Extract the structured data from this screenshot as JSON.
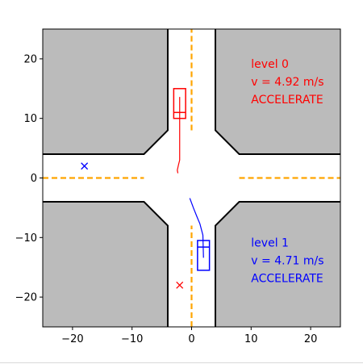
{
  "chart_data": {
    "type": "scatter",
    "xlim": [
      -25,
      25
    ],
    "ylim": [
      -25,
      25
    ],
    "grid": false,
    "x_ticks": [
      -20,
      -10,
      0,
      10,
      20
    ],
    "y_ticks": [
      -20,
      -10,
      0,
      10,
      20
    ],
    "x_tick_labels": [
      "−20",
      "−10",
      "0",
      "10",
      "20"
    ],
    "y_tick_labels": [
      "−20",
      "−10",
      "0",
      "10",
      "20"
    ],
    "road": {
      "lane_half_width": 4,
      "corner_chamfer": 4,
      "block_color": "#bbbbbb",
      "edge_color": "#000000",
      "center_line_color": "#ffa500",
      "center_line_segments": [
        {
          "x": [
            0,
            0
          ],
          "y": [
            8,
            25
          ]
        },
        {
          "x": [
            0,
            0
          ],
          "y": [
            -25,
            -8
          ]
        },
        {
          "x": [
            -25,
            -8
          ],
          "y": [
            0,
            0
          ]
        },
        {
          "x": [
            8,
            25
          ],
          "y": [
            0,
            0
          ]
        }
      ]
    },
    "vehicles": [
      {
        "name": "level 0",
        "color": "#ff0000",
        "box_center": [
          -2,
          12.5
        ],
        "box_size": [
          2,
          5
        ],
        "box_divider_y": 11,
        "trajectory": [
          [
            -2,
            13.6
          ],
          [
            -2,
            10
          ],
          [
            -2,
            6
          ],
          [
            -2,
            3
          ],
          [
            -2.2,
            2.2
          ],
          [
            -2.4,
            1.3
          ],
          [
            -2.3,
            0.8
          ]
        ],
        "goal": [
          -2,
          -18
        ],
        "label_lines": [
          "level 0",
          "v = 4.92 m/s",
          "ACCELERATE"
        ],
        "label_anchor": [
          10,
          18.5
        ]
      },
      {
        "name": "level 1",
        "color": "#0000ff",
        "box_center": [
          2,
          -13
        ],
        "box_size": [
          2,
          5
        ],
        "box_divider_y": -11.6,
        "trajectory": [
          [
            -0.3,
            -3.4
          ],
          [
            0.3,
            -5
          ],
          [
            0.9,
            -6.5
          ],
          [
            1.4,
            -7.7
          ],
          [
            1.9,
            -9.6
          ],
          [
            2,
            -13.4
          ]
        ],
        "goal": [
          -18,
          2
        ],
        "label_lines": [
          "level 1",
          "v = 4.71 m/s",
          "ACCELERATE"
        ],
        "label_anchor": [
          10,
          -11.5
        ]
      }
    ]
  }
}
